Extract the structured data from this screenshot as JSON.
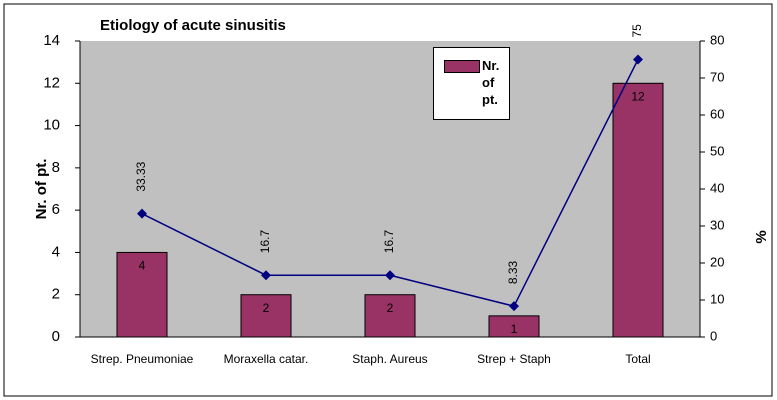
{
  "chart_data": {
    "type": "bar_line",
    "title": "Etiology of acute sinusitis",
    "ylabel": "Nr. of pt.",
    "y2label": "%",
    "categories": [
      "Strep. Pneumoniae",
      "Moraxella catar.",
      "Staph. Aureus",
      "Strep + Staph",
      "Total"
    ],
    "series": [
      {
        "name": "Nr. of pt.",
        "type": "bar",
        "color": "#993366",
        "values": [
          4,
          2,
          2,
          1,
          12
        ]
      },
      {
        "type": "line",
        "color": "#000080",
        "axis": "y2",
        "values": [
          33.33,
          16.7,
          16.7,
          8.33,
          75
        ]
      }
    ],
    "ylim": [
      0,
      14
    ],
    "yticks": [
      0,
      2,
      4,
      6,
      8,
      10,
      12,
      14
    ],
    "y2lim": [
      0,
      80
    ],
    "y2ticks": [
      0,
      10,
      20,
      30,
      40,
      50,
      60,
      70,
      80
    ],
    "legend": "top-right",
    "plot_background": "#c0c0c0"
  }
}
